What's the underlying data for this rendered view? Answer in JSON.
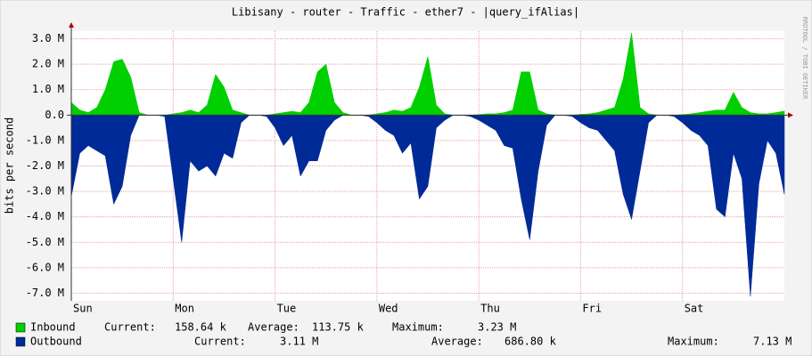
{
  "chart_data": {
    "type": "area",
    "title": "Libisany - router - Traffic - ether7 - |query_ifAlias|",
    "y_label": "bits per second",
    "watermark": "RRDTOOL / TOBI OETIKER",
    "x": [
      0,
      2,
      4,
      6,
      8,
      10,
      12,
      14,
      16,
      18,
      20,
      22,
      24,
      26,
      28,
      30,
      32,
      34,
      36,
      38,
      40,
      42,
      44,
      46,
      48,
      50,
      52,
      54,
      56,
      58,
      60,
      62,
      64,
      66,
      68,
      70,
      72,
      74,
      76,
      78,
      80,
      82,
      84,
      86,
      88,
      90,
      92,
      94,
      96,
      98,
      100,
      102,
      104,
      106,
      108,
      110,
      112,
      114,
      116,
      118,
      120,
      122,
      124,
      126,
      128,
      130,
      132,
      134,
      136,
      138,
      140,
      142,
      144,
      146,
      148,
      150,
      152,
      154,
      156,
      158,
      160,
      162,
      164,
      166,
      168
    ],
    "xlim": [
      0,
      168
    ],
    "xticks": [
      {
        "value": 0,
        "label": "Sun"
      },
      {
        "value": 24,
        "label": "Mon"
      },
      {
        "value": 48,
        "label": "Tue"
      },
      {
        "value": 72,
        "label": "Wed"
      },
      {
        "value": 96,
        "label": "Thu"
      },
      {
        "value": 120,
        "label": "Fri"
      },
      {
        "value": 144,
        "label": "Sat"
      }
    ],
    "ylim": [
      -7.3,
      3.3
    ],
    "yticks": [
      {
        "value": 3,
        "label": "3.0 M"
      },
      {
        "value": 2,
        "label": "2.0 M"
      },
      {
        "value": 1,
        "label": "1.0 M"
      },
      {
        "value": 0,
        "label": "0.0"
      },
      {
        "value": -1,
        "label": "-1.0 M"
      },
      {
        "value": -2,
        "label": "-2.0 M"
      },
      {
        "value": -3,
        "label": "-3.0 M"
      },
      {
        "value": -4,
        "label": "-4.0 M"
      },
      {
        "value": -5,
        "label": "-5.0 M"
      },
      {
        "value": -6,
        "label": "-6.0 M"
      },
      {
        "value": -7,
        "label": "-7.0 M"
      }
    ],
    "grid": true,
    "series": [
      {
        "name": "Inbound",
        "color": "#00cf00",
        "values": [
          0.5,
          0.2,
          0.1,
          0.3,
          1.0,
          2.1,
          2.2,
          1.5,
          0.1,
          0,
          0,
          0,
          0.05,
          0.1,
          0.2,
          0.1,
          0.4,
          1.6,
          1.1,
          0.2,
          0.1,
          0,
          0,
          0,
          0.05,
          0.1,
          0.15,
          0.1,
          0.5,
          1.7,
          2.0,
          0.5,
          0.1,
          0,
          0,
          0,
          0.05,
          0.1,
          0.2,
          0.15,
          0.3,
          1.1,
          2.3,
          0.4,
          0.05,
          0,
          0,
          0,
          0.02,
          0.05,
          0.05,
          0.1,
          0.2,
          1.7,
          1.7,
          0.2,
          0.05,
          0,
          0,
          0,
          0.03,
          0.05,
          0.1,
          0.2,
          0.3,
          1.4,
          3.23,
          0.3,
          0.05,
          0,
          0,
          0,
          0.02,
          0.05,
          0.1,
          0.15,
          0.2,
          0.2,
          0.9,
          0.3,
          0.1,
          0.05,
          0.05,
          0.1,
          0.16
        ],
        "stats": [
          [
            "Current:",
            "158.64 k"
          ],
          [
            "Average:",
            "113.75 k"
          ],
          [
            "Maximum:",
            "3.23 M"
          ]
        ]
      },
      {
        "name": "Outbound",
        "color": "#002a97",
        "values": [
          -3.2,
          -1.5,
          -1.2,
          -1.4,
          -1.6,
          -3.5,
          -2.8,
          -0.8,
          0,
          0,
          0,
          -0.05,
          -2.5,
          -5.0,
          -1.8,
          -2.2,
          -2.0,
          -2.4,
          -1.5,
          -1.7,
          -0.3,
          0,
          0,
          -0.05,
          -0.5,
          -1.2,
          -0.8,
          -2.4,
          -1.8,
          -1.8,
          -0.6,
          -0.2,
          0,
          0,
          0,
          -0.05,
          -0.3,
          -0.6,
          -0.8,
          -1.5,
          -1.1,
          -3.3,
          -2.8,
          -0.5,
          -0.2,
          0,
          0,
          -0.05,
          -0.2,
          -0.4,
          -0.6,
          -1.2,
          -1.3,
          -3.3,
          -4.9,
          -2.2,
          -0.4,
          0,
          0,
          -0.05,
          -0.3,
          -0.5,
          -0.6,
          -1.0,
          -1.4,
          -3.1,
          -4.1,
          -2.2,
          -0.3,
          0,
          0,
          -0.05,
          -0.3,
          -0.6,
          -0.8,
          -1.2,
          -3.7,
          -4.0,
          -1.5,
          -2.5,
          -7.13,
          -2.7,
          -1.0,
          -1.5,
          -3.11
        ],
        "stats": [
          [
            "Current:",
            "3.11 M"
          ],
          [
            "Average:",
            "686.80 k"
          ],
          [
            "Maximum:",
            "7.13 M"
          ]
        ]
      }
    ]
  }
}
